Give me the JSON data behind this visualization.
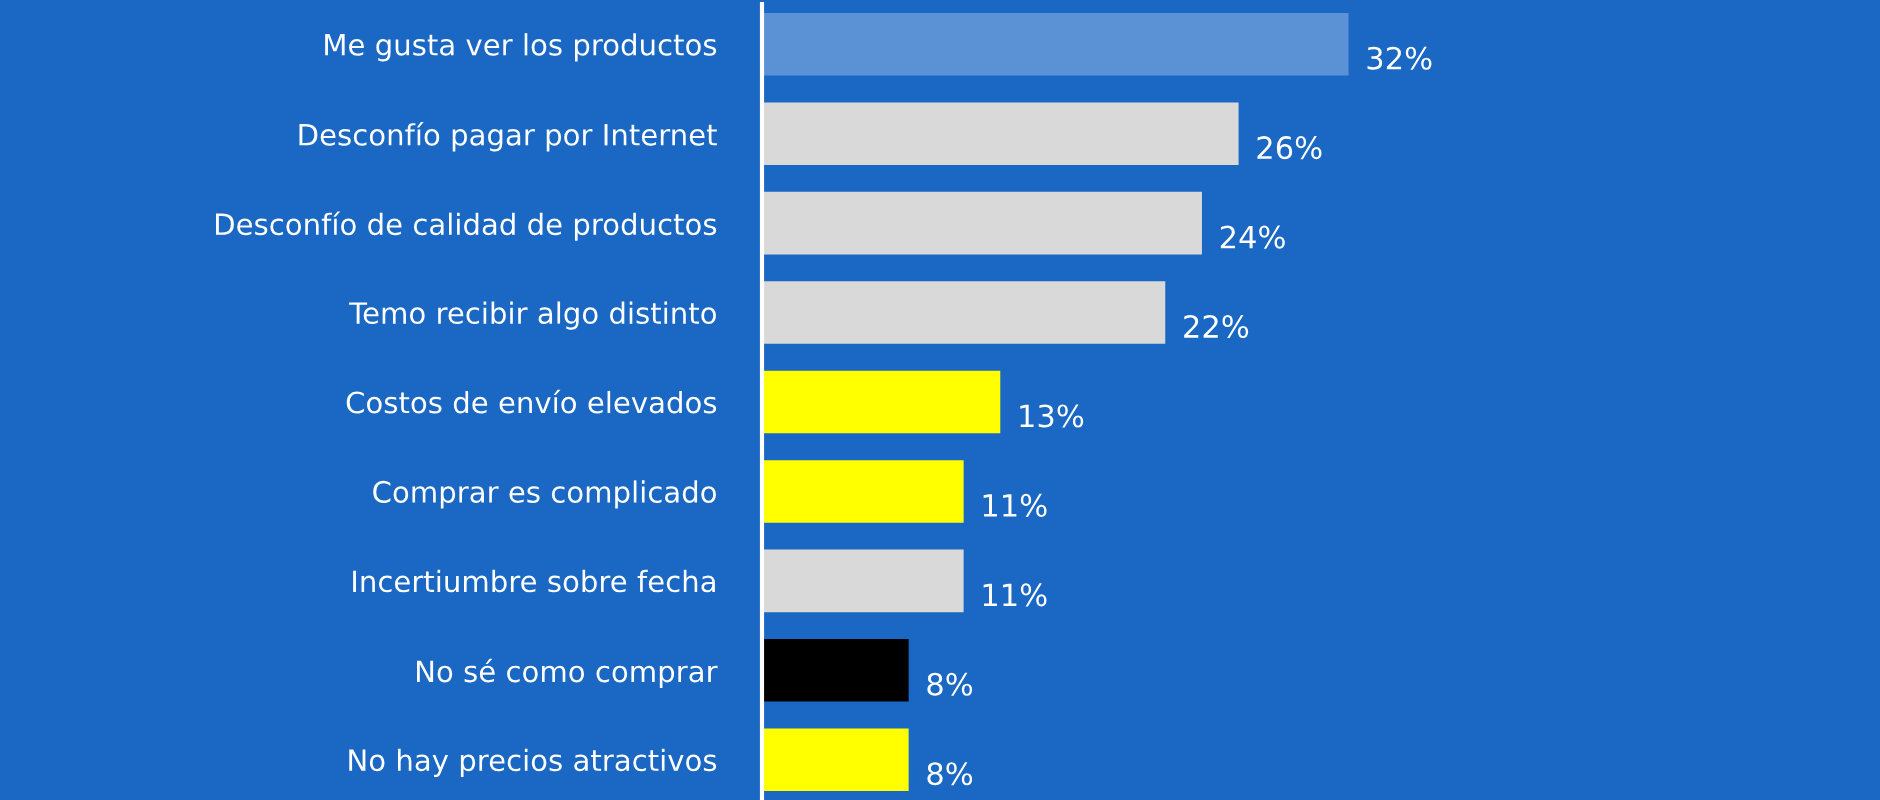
{
  "chart_data": {
    "type": "bar",
    "orientation": "horizontal",
    "categories": [
      "Me gusta ver los productos",
      "Desconfío pagar por Internet",
      "Desconfío de calidad de productos",
      "Temo recibir algo distinto",
      "Costos de envío elevados",
      "Comprar es complicado",
      "Incertiumbre sobre fecha",
      "No sé como comprar",
      "No hay precios atractivos"
    ],
    "values": [
      32,
      26,
      24,
      22,
      13,
      11,
      11,
      8,
      8
    ],
    "value_labels": [
      "32%",
      "26%",
      "24%",
      "22%",
      "13%",
      "11%",
      "11%",
      "8%",
      "8%"
    ],
    "colors": [
      "#5b92d6",
      "#d9d9d9",
      "#d9d9d9",
      "#d9d9d9",
      "#ffff00",
      "#ffff00",
      "#d9d9d9",
      "#000000",
      "#ffff00"
    ],
    "grid": false,
    "legend": false
  }
}
